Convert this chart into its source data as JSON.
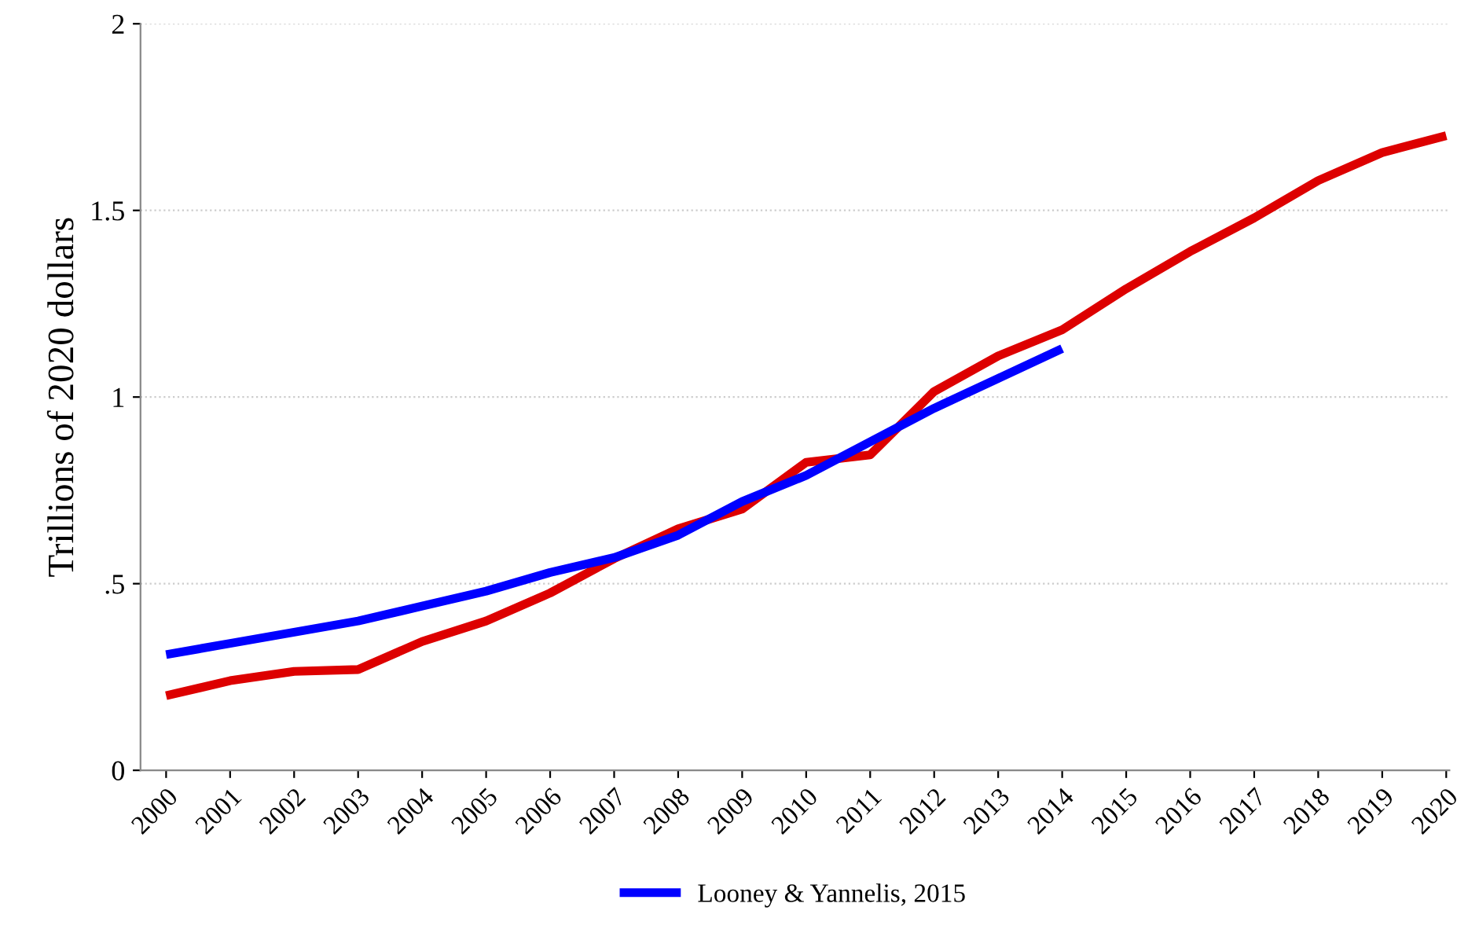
{
  "chart_data": {
    "type": "line",
    "ylabel": "Trillions of 2020 dollars",
    "categories": [
      "2000",
      "2001",
      "2002",
      "2003",
      "2004",
      "2005",
      "2006",
      "2007",
      "2008",
      "2009",
      "2010",
      "2011",
      "2012",
      "2013",
      "2014",
      "2015",
      "2016",
      "2017",
      "2018",
      "2019",
      "2020"
    ],
    "series": [
      {
        "color": "#dd0000",
        "values": [
          0.2,
          0.24,
          0.265,
          0.27,
          0.345,
          0.4,
          0.475,
          0.567,
          0.647,
          0.7,
          0.825,
          0.845,
          1.015,
          1.11,
          1.18,
          1.29,
          1.39,
          1.48,
          1.58,
          1.655,
          1.7
        ]
      },
      {
        "name": "Looney & Yannelis, 2015",
        "color": "#0000ff",
        "values": [
          0.31,
          0.34,
          0.37,
          0.4,
          0.44,
          0.48,
          0.53,
          0.57,
          0.63,
          0.72,
          0.79,
          0.88,
          0.97,
          1.05,
          1.13,
          null,
          null,
          null,
          null,
          null,
          null
        ]
      }
    ],
    "ylim": [
      0,
      2
    ],
    "yticks": [
      0,
      {
        "value": 0.5,
        "label": ".5"
      },
      1,
      1.5,
      2
    ],
    "grid": "y",
    "legend": "bottom",
    "marker": "none",
    "line_style": "solid"
  }
}
